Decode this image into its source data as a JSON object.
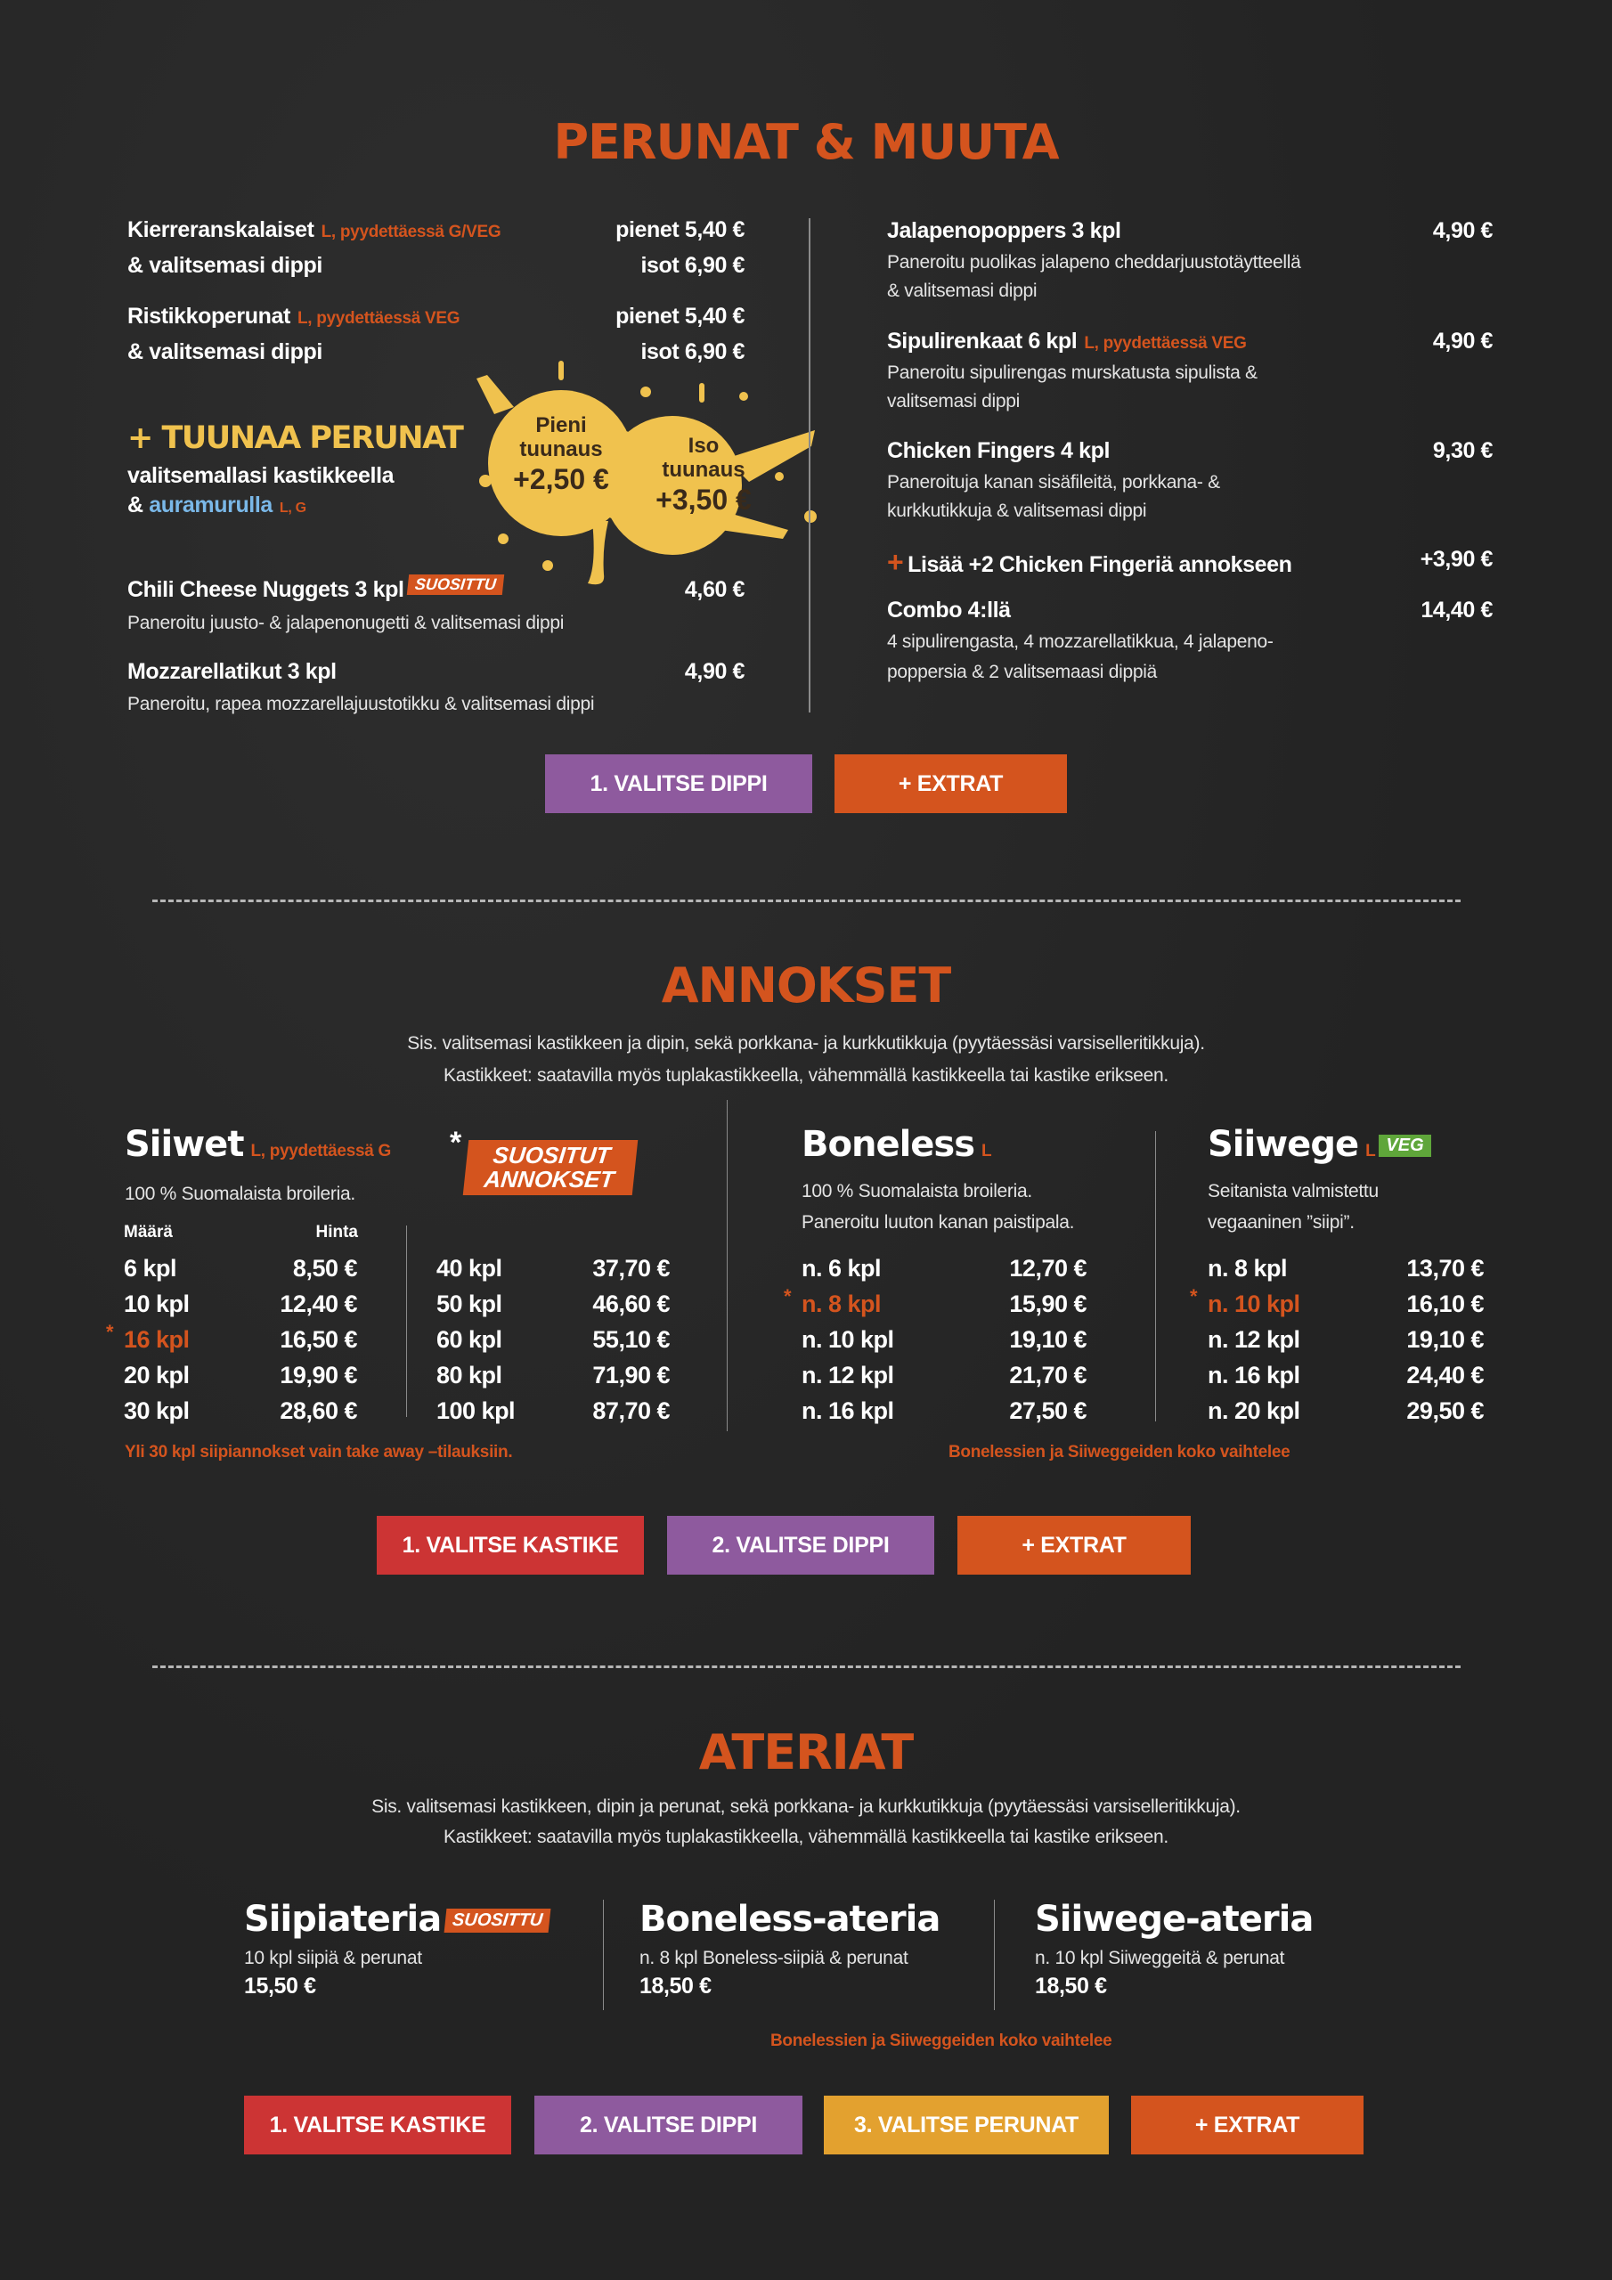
{
  "colors": {
    "accent": "#d4541e",
    "purple": "#8e5a9e",
    "red": "#cc3434",
    "yellow": "#e3a12f",
    "splat": "#f0c24e",
    "blue": "#7ab8e8",
    "green": "#5fa63a"
  },
  "perunat": {
    "title": "PERUNAT & MUUTA",
    "left": [
      {
        "name": "Kierreranskalaiset",
        "tag": "L, pyydettäessä G/VEG",
        "line2": "& valitsemasi dippi",
        "price1": "pienet 5,40 €",
        "price2": "isot 6,90 €"
      },
      {
        "name": "Ristikkoperunat",
        "tag": "L, pyydettäessä VEG",
        "line2": "& valitsemasi dippi",
        "price1": "pienet 5,40 €",
        "price2": "isot 6,90 €"
      }
    ],
    "tuunaa": {
      "title": "+ TUUNAA PERUNAT",
      "line1": "valitsemallasi kastikkeella",
      "amp": "& ",
      "aura": "auramurulla",
      "tag": "L, G",
      "small": {
        "l1": "Pieni",
        "l2": "tuunaus",
        "price": "+2,50 €"
      },
      "large": {
        "l1": "Iso",
        "l2": "tuunaus",
        "price": "+3,50 €"
      }
    },
    "left_items": [
      {
        "name": "Chili Cheese Nuggets 3 kpl",
        "badge": "SUOSITTU",
        "price": "4,60 €",
        "desc": "Paneroitu juusto- & jalapenonugetti & valitsemasi dippi"
      },
      {
        "name": "Mozzarellatikut 3 kpl",
        "price": "4,90 €",
        "desc": "Paneroitu, rapea mozzarellajuustotikku & valitsemasi dippi"
      }
    ],
    "right": [
      {
        "name": "Jalapenopoppers 3 kpl",
        "price": "4,90 €",
        "desc1": "Paneroitu puolikas jalapeno cheddarjuustotäytteellä",
        "desc2": "& valitsemasi dippi"
      },
      {
        "name": "Sipulirenkaat 6 kpl",
        "tag": "L, pyydettäessä VEG",
        "price": "4,90 €",
        "desc1": "Paneroitu sipulirengas murskatusta sipulista &",
        "desc2": "valitsemasi dippi"
      },
      {
        "name": "Chicken Fingers 4 kpl",
        "price": "9,30 €",
        "desc1": "Paneroituja kanan sisäfileitä, porkkana- &",
        "desc2": "kurkkutikkuja & valitsemasi dippi"
      },
      {
        "plus": "+",
        "name": "Lisää +2 Chicken Fingeriä annokseen",
        "price": "+3,90 €"
      },
      {
        "name": "Combo 4:llä",
        "price": "14,40 €",
        "desc1": "4 sipulirengasta, 4 mozzarellatikkua, 4 jalapeno-",
        "desc2": "poppersia & 2 valitsemaasi dippiä"
      }
    ],
    "buttons": [
      "1. VALITSE DIPPI",
      "+ EXTRAT"
    ]
  },
  "annokset": {
    "title": "ANNOKSET",
    "sub1": "Sis. valitsemasi kastikkeen ja dipin, sekä porkkana- ja kurkkutikkuja (pyytäessäsi varsiselleritikkuja).",
    "sub2": "Kastikkeet: saatavilla myös tuplakastikkeella, vähemmällä kastikkeella tai kastike erikseen.",
    "siiwet": {
      "title": "Siiwet",
      "tag": "L, pyydettäessä G",
      "desc": "100 % Suomalaista broileria.",
      "head_qty": "Määrä",
      "head_price": "Hinta",
      "badge": "SUOSITUT ANNOKSET",
      "star": "*",
      "col1": [
        {
          "q": "6 kpl",
          "p": "8,50  €"
        },
        {
          "q": "10 kpl",
          "p": "12,40 €"
        },
        {
          "q": "16 kpl",
          "p": "16,50 €",
          "hl": true
        },
        {
          "q": "20 kpl",
          "p": "19,90 €"
        },
        {
          "q": "30 kpl",
          "p": "28,60 €"
        }
      ],
      "col2": [
        {
          "q": "40 kpl",
          "p": "37,70 €"
        },
        {
          "q": "50 kpl",
          "p": "46,60 €"
        },
        {
          "q": "60 kpl",
          "p": "55,10 €"
        },
        {
          "q": "80 kpl",
          "p": "71,90 €"
        },
        {
          "q": "100 kpl",
          "p": "87,70 €"
        }
      ],
      "note": "Yli 30 kpl siipiannokset vain take away –tilauksiin."
    },
    "boneless": {
      "title": "Boneless",
      "tag": "L",
      "desc1": "100 % Suomalaista broileria.",
      "desc2": "Paneroitu luuton kanan paistipala.",
      "rows": [
        {
          "q": "n. 6 kpl",
          "p": "12,70 €"
        },
        {
          "q": "n. 8 kpl",
          "p": "15,90 €",
          "hl": true
        },
        {
          "q": "n. 10 kpl",
          "p": "19,10 €"
        },
        {
          "q": "n. 12 kpl",
          "p": "21,70 €"
        },
        {
          "q": "n. 16 kpl",
          "p": "27,50 €"
        }
      ]
    },
    "siiwege": {
      "title": "Siiwege",
      "tag": "L",
      "veg": "VEG",
      "desc1": "Seitanista valmistettu",
      "desc2": "vegaaninen ”siipi”.",
      "rows": [
        {
          "q": "n. 8 kpl",
          "p": "13,70 €"
        },
        {
          "q": "n. 10 kpl",
          "p": "16,10 €",
          "hl": true
        },
        {
          "q": "n. 12 kpl",
          "p": "19,10 €"
        },
        {
          "q": "n. 16 kpl",
          "p": "24,40 €"
        },
        {
          "q": "n. 20 kpl",
          "p": "29,50 €"
        }
      ]
    },
    "note": "Bonelessien ja Siiweggeiden koko vaihtelee",
    "buttons": [
      "1. VALITSE KASTIKE",
      "2. VALITSE DIPPI",
      "+ EXTRAT"
    ]
  },
  "ateriat": {
    "title": "ATERIAT",
    "sub1": "Sis. valitsemasi kastikkeen, dipin ja perunat, sekä porkkana- ja kurkkutikkuja (pyytäessäsi varsiselleritikkuja).",
    "sub2": "Kastikkeet: saatavilla myös tuplakastikkeella, vähemmällä kastikkeella tai kastike erikseen.",
    "meals": [
      {
        "title": "Siipiateria",
        "badge": "SUOSITTU",
        "desc": "10 kpl siipiä & perunat",
        "price": "15,50 €"
      },
      {
        "title": "Boneless-ateria",
        "desc": "n. 8 kpl Boneless-siipiä & perunat",
        "price": "18,50 €"
      },
      {
        "title": "Siiwege-ateria",
        "desc": "n. 10 kpl Siiweggeitä & perunat",
        "price": "18,50 €"
      }
    ],
    "note": "Bonelessien ja Siiweggeiden koko vaihtelee",
    "buttons": [
      "1. VALITSE KASTIKE",
      "2. VALITSE DIPPI",
      "3. VALITSE PERUNAT",
      "+ EXTRAT"
    ]
  }
}
